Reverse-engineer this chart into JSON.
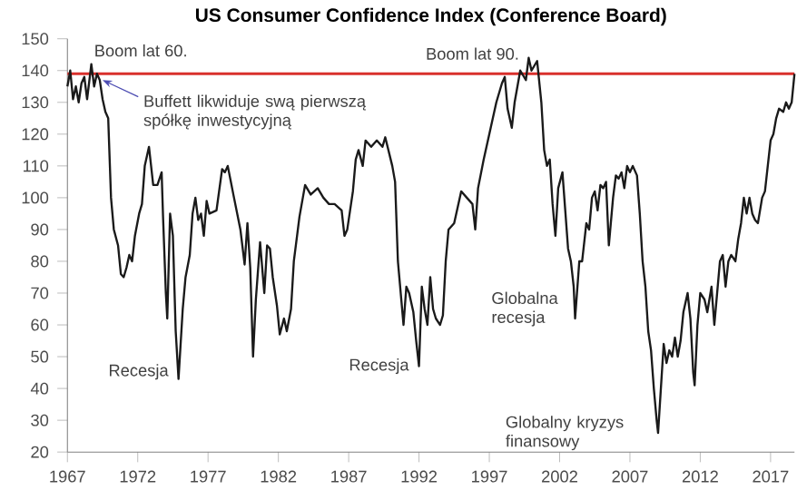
{
  "chart_data": {
    "type": "line",
    "title": "US Consumer Confidence Index (Conference Board)",
    "x": [
      1967.0,
      1967.2,
      1967.4,
      1967.6,
      1967.8,
      1968.0,
      1968.2,
      1968.4,
      1968.7,
      1968.9,
      1969.1,
      1969.3,
      1969.5,
      1969.7,
      1969.9,
      1970.1,
      1970.3,
      1970.6,
      1970.8,
      1971.0,
      1971.2,
      1971.4,
      1971.6,
      1971.8,
      1972.1,
      1972.3,
      1972.5,
      1972.8,
      1973.1,
      1973.4,
      1973.7,
      1973.8,
      1974.0,
      1974.1,
      1974.3,
      1974.5,
      1974.7,
      1974.9,
      1975.2,
      1975.4,
      1975.7,
      1975.9,
      1976.1,
      1976.3,
      1976.5,
      1976.7,
      1976.9,
      1977.1,
      1977.6,
      1978.0,
      1978.2,
      1978.4,
      1978.8,
      1979.3,
      1979.6,
      1979.8,
      1980.0,
      1980.2,
      1980.4,
      1980.7,
      1981.0,
      1981.2,
      1981.4,
      1981.6,
      1981.9,
      1982.1,
      1982.4,
      1982.6,
      1982.9,
      1983.1,
      1983.5,
      1983.9,
      1984.3,
      1984.8,
      1985.2,
      1985.6,
      1986.0,
      1986.5,
      1986.7,
      1986.9,
      1987.1,
      1987.3,
      1987.5,
      1987.7,
      1988.0,
      1988.2,
      1988.6,
      1989.0,
      1989.4,
      1989.6,
      1990.1,
      1990.3,
      1990.5,
      1990.9,
      1991.1,
      1991.3,
      1991.6,
      1991.8,
      1992.0,
      1992.2,
      1992.4,
      1992.6,
      1992.8,
      1993.0,
      1993.2,
      1993.5,
      1993.7,
      1993.9,
      1994.1,
      1994.5,
      1995.0,
      1995.4,
      1995.8,
      1996.0,
      1996.2,
      1996.6,
      1997.1,
      1997.5,
      1997.9,
      1998.1,
      1998.3,
      1998.6,
      1998.8,
      1999.0,
      1999.2,
      1999.6,
      1999.8,
      2000.0,
      2000.4,
      2000.7,
      2000.9,
      2001.1,
      2001.3,
      2001.5,
      2001.7,
      2001.9,
      2002.2,
      2002.4,
      2002.6,
      2002.8,
      2003.0,
      2003.1,
      2003.3,
      2003.4,
      2003.6,
      2003.9,
      2004.1,
      2004.3,
      2004.5,
      2004.7,
      2004.9,
      2005.1,
      2005.3,
      2005.5,
      2005.8,
      2006.0,
      2006.2,
      2006.4,
      2006.6,
      2006.8,
      2007.0,
      2007.2,
      2007.5,
      2007.7,
      2007.9,
      2008.1,
      2008.3,
      2008.5,
      2008.7,
      2008.9,
      2009.0,
      2009.2,
      2009.4,
      2009.6,
      2009.8,
      2010.0,
      2010.2,
      2010.4,
      2010.6,
      2010.8,
      2011.1,
      2011.3,
      2011.5,
      2011.6,
      2011.8,
      2012.0,
      2012.3,
      2012.5,
      2012.8,
      2013.0,
      2013.2,
      2013.4,
      2013.6,
      2013.8,
      2014.0,
      2014.2,
      2014.5,
      2014.7,
      2014.9,
      2015.1,
      2015.3,
      2015.5,
      2015.7,
      2015.9,
      2016.1,
      2016.4,
      2016.6,
      2016.8,
      2017.0,
      2017.2,
      2017.4,
      2017.6,
      2017.9,
      2018.1,
      2018.3,
      2018.5,
      2018.7
    ],
    "values": [
      135,
      140,
      131,
      135,
      130,
      136,
      138,
      131,
      142,
      135,
      139,
      137,
      131,
      127,
      125,
      100,
      90,
      85,
      76,
      75,
      78,
      82,
      80,
      88,
      95,
      98,
      110,
      116,
      104,
      104,
      108,
      94,
      70,
      62,
      95,
      88,
      58,
      43,
      65,
      75,
      82,
      95,
      100,
      93,
      95,
      88,
      99,
      95,
      96,
      109,
      108,
      110,
      101,
      90,
      79,
      92,
      78,
      50,
      68,
      86,
      70,
      85,
      84,
      75,
      66,
      57,
      62,
      58,
      65,
      80,
      94,
      104,
      101,
      103,
      100,
      98,
      98,
      96,
      88,
      90,
      96,
      102,
      112,
      115,
      110,
      118,
      116,
      118,
      116,
      119,
      110,
      105,
      80,
      60,
      72,
      70,
      64,
      55,
      47,
      72,
      65,
      60,
      75,
      65,
      62,
      60,
      63,
      80,
      90,
      92,
      102,
      100,
      98,
      90,
      103,
      112,
      122,
      130,
      136,
      138,
      128,
      122,
      130,
      135,
      140,
      137,
      144,
      140,
      143,
      130,
      115,
      110,
      112,
      98,
      88,
      103,
      108,
      96,
      84,
      80,
      72,
      62,
      74,
      80,
      80,
      92,
      90,
      100,
      102,
      96,
      104,
      103,
      105,
      85,
      100,
      107,
      106,
      108,
      103,
      110,
      108,
      110,
      107,
      95,
      80,
      72,
      58,
      52,
      40,
      30,
      26,
      40,
      54,
      48,
      52,
      50,
      56,
      50,
      55,
      64,
      70,
      62,
      45,
      41,
      60,
      70,
      68,
      64,
      72,
      60,
      70,
      80,
      82,
      72,
      80,
      82,
      80,
      87,
      92,
      100,
      95,
      100,
      95,
      93,
      92,
      100,
      102,
      110,
      118,
      120,
      125,
      128,
      127,
      130,
      128,
      130,
      139
    ],
    "color": "#1a1a1a",
    "xlim": [
      1967,
      2018.7
    ],
    "xticks": [
      1967,
      1972,
      1977,
      1982,
      1987,
      1992,
      1997,
      2002,
      2007,
      2012,
      2017
    ],
    "ylim": [
      20,
      150
    ],
    "yticks": [
      20,
      30,
      40,
      50,
      60,
      70,
      80,
      90,
      100,
      110,
      120,
      130,
      140,
      150
    ],
    "ref_lines": [
      {
        "axis": "y",
        "value": 139,
        "color": "#d9302c"
      }
    ],
    "annotations": [
      {
        "text": "Boom lat 60.",
        "x": 1968.7,
        "y": 142
      },
      {
        "text": "Buffett likwiduje swą pierwszą spółkę inwestycyjną",
        "x": 1969.5,
        "y": 137
      },
      {
        "text": "Recesja",
        "x": 1974.9,
        "y": 43
      },
      {
        "text": "Recesja",
        "x": 1992.0,
        "y": 47
      },
      {
        "text": "Globalna recesja",
        "x": 2003.1,
        "y": 62
      },
      {
        "text": "Globalny kryzys finansowy",
        "x": 2009.0,
        "y": 26
      },
      {
        "text": "Boom lat 90.",
        "x": 2000.0,
        "y": 144
      }
    ]
  }
}
